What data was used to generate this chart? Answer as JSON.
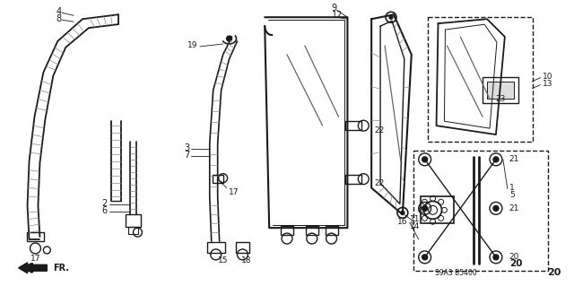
{
  "background_color": "#ffffff",
  "line_color": "#1a1a1a",
  "fig_width": 6.4,
  "fig_height": 3.19,
  "dpi": 100,
  "s9a3_text": "S9A3 B5400"
}
